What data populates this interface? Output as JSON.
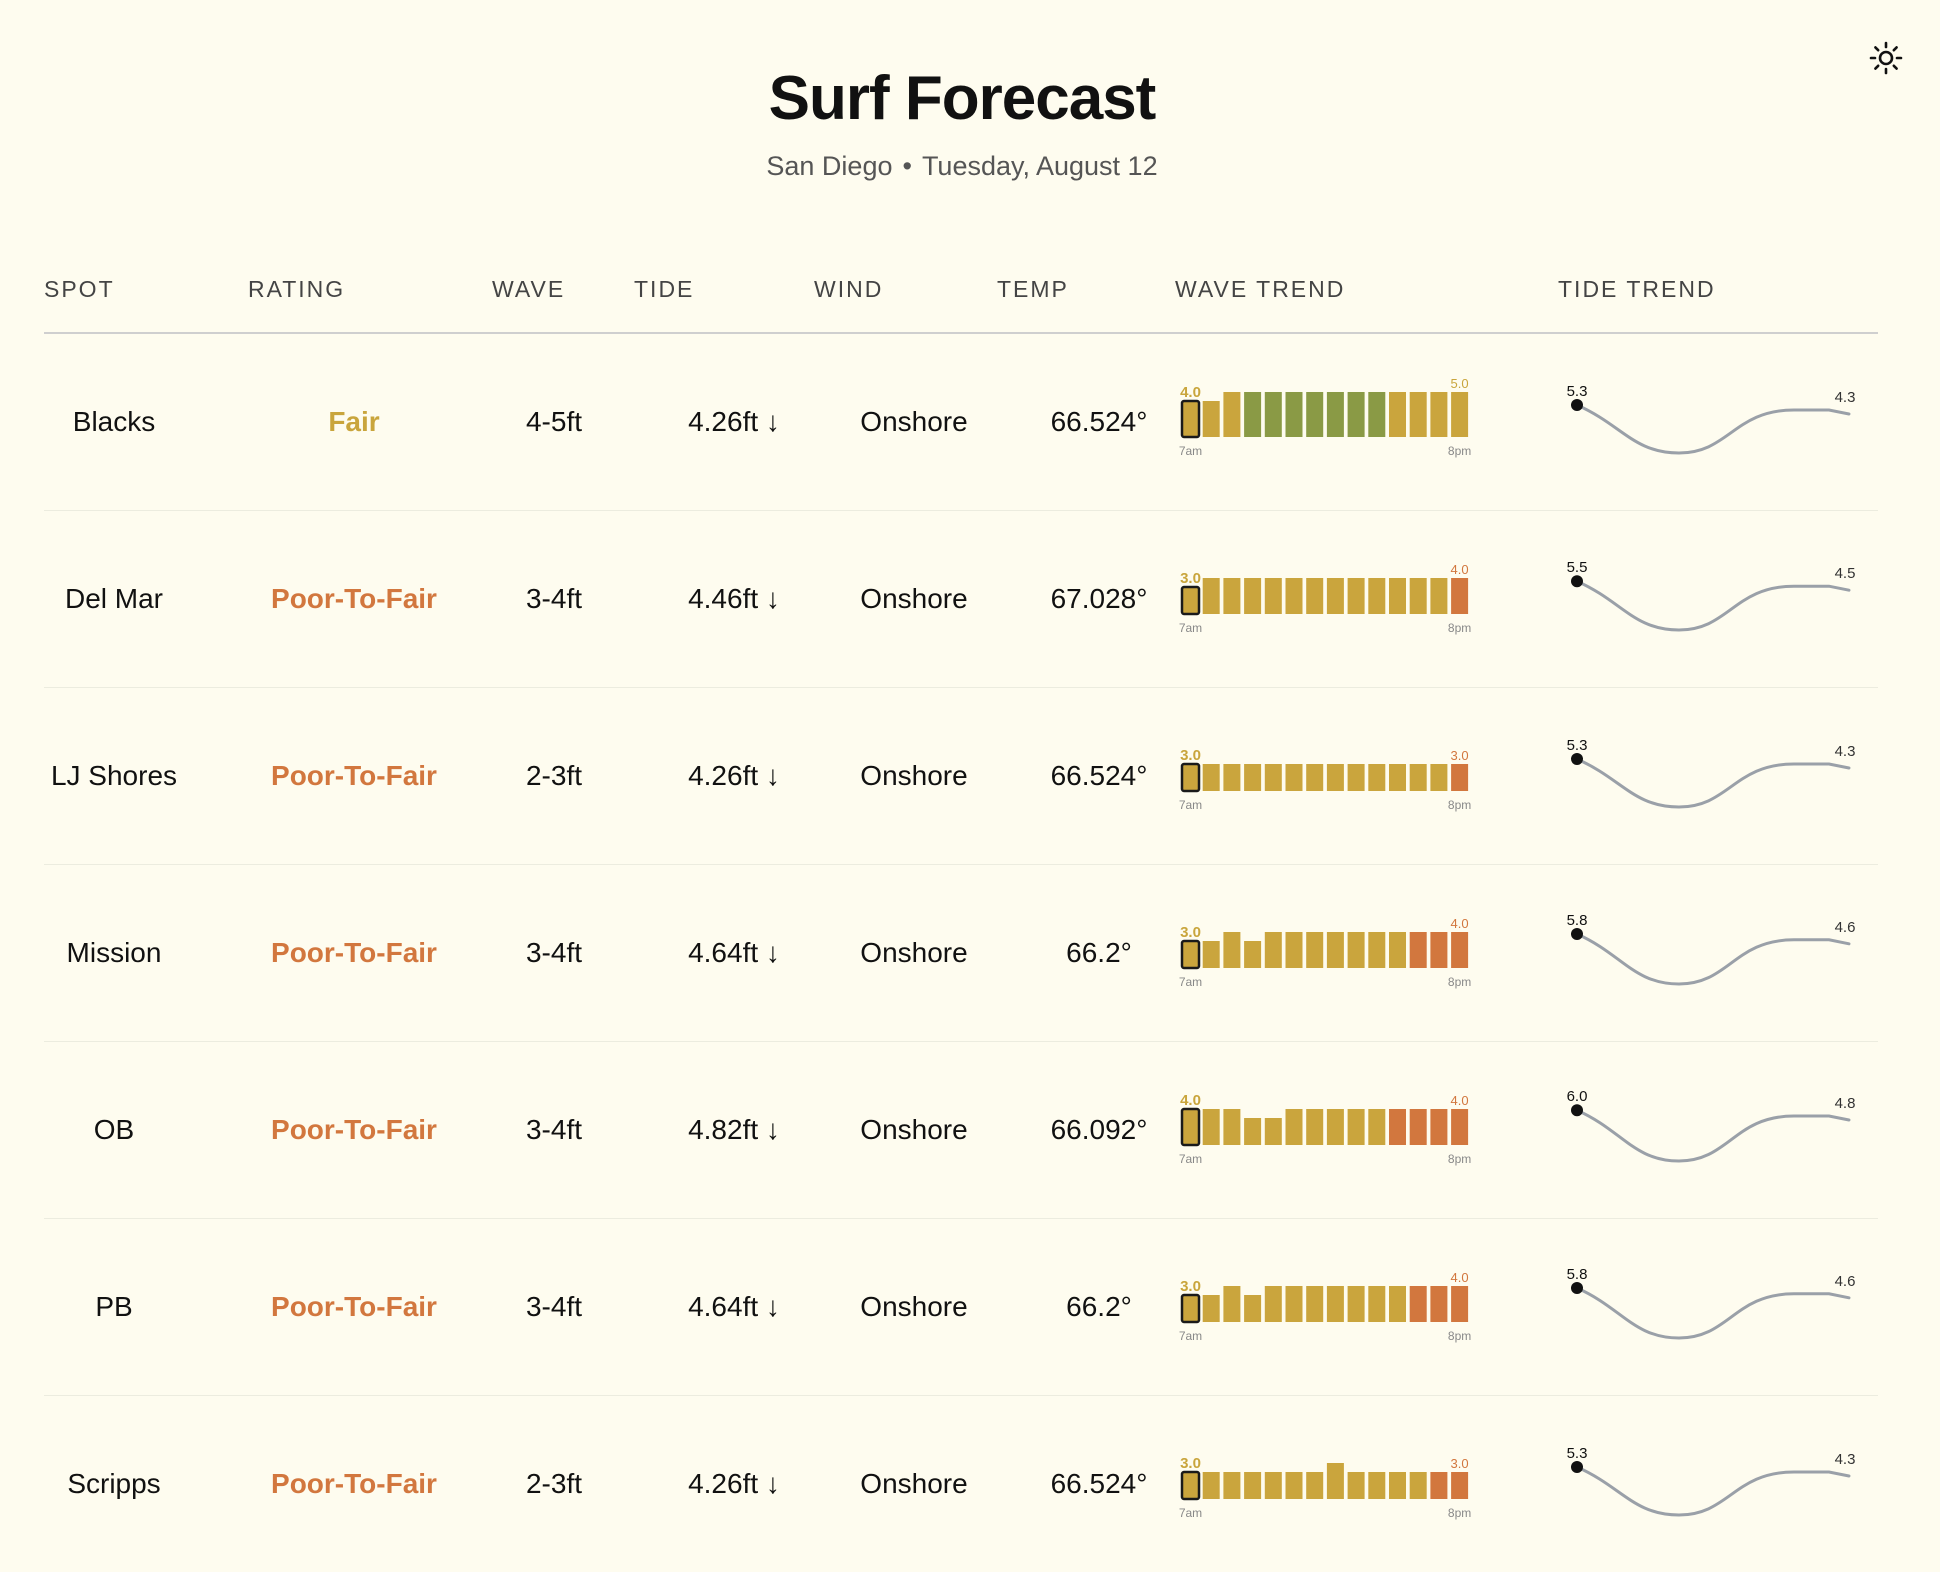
{
  "header": {
    "title": "Surf Forecast",
    "location": "San Diego",
    "separator": "•",
    "date": "Tuesday, August 12"
  },
  "theme_toggle": {
    "icon": "sun-icon"
  },
  "columns": [
    "SPOT",
    "RATING",
    "WAVE",
    "TIDE",
    "WIND",
    "TEMP",
    "WAVE TREND",
    "TIDE TREND"
  ],
  "colors": {
    "fair": "#c9a53c",
    "poor_to_fair": "#d2773e",
    "good": "#8a9a45",
    "bar_yellow": "#caa53d",
    "bar_green": "#8a9a45",
    "bar_orange": "#d2773e",
    "tide_line": "#9aa0a8",
    "divider": "#cfcfcf"
  },
  "wave_trend_axis": {
    "start": "7am",
    "end": "8pm"
  },
  "spots": [
    {
      "name": "Blacks",
      "rating": "Fair",
      "rating_color": "#c9a53c",
      "wave": "4-5ft",
      "tide": "4.26ft ↓",
      "wind": "Onshore",
      "temp": "66.524°",
      "wave_trend": {
        "start_label": "4.0",
        "end_label": "5.0",
        "start_color": "#c9a53c",
        "end_color": "#c9a53c",
        "bars": [
          {
            "v": 4.0,
            "c": "y"
          },
          {
            "v": 4.0,
            "c": "y"
          },
          {
            "v": 5.0,
            "c": "y"
          },
          {
            "v": 5.0,
            "c": "g"
          },
          {
            "v": 5.0,
            "c": "g"
          },
          {
            "v": 5.0,
            "c": "g"
          },
          {
            "v": 5.0,
            "c": "g"
          },
          {
            "v": 5.0,
            "c": "g"
          },
          {
            "v": 5.0,
            "c": "g"
          },
          {
            "v": 5.0,
            "c": "g"
          },
          {
            "v": 5.0,
            "c": "y"
          },
          {
            "v": 5.0,
            "c": "y"
          },
          {
            "v": 5.0,
            "c": "y"
          },
          {
            "v": 5.0,
            "c": "y"
          }
        ]
      },
      "tide_trend": {
        "start_label": "5.3",
        "end_label": "4.3"
      }
    },
    {
      "name": "Del Mar",
      "rating": "Poor-To-Fair",
      "rating_color": "#d2773e",
      "wave": "3-4ft",
      "tide": "4.46ft ↓",
      "wind": "Onshore",
      "temp": "67.028°",
      "wave_trend": {
        "start_label": "3.0",
        "end_label": "4.0",
        "start_color": "#c9a53c",
        "end_color": "#d2773e",
        "bars": [
          {
            "v": 3.0,
            "c": "y"
          },
          {
            "v": 4.0,
            "c": "y"
          },
          {
            "v": 4.0,
            "c": "y"
          },
          {
            "v": 4.0,
            "c": "y"
          },
          {
            "v": 4.0,
            "c": "y"
          },
          {
            "v": 4.0,
            "c": "y"
          },
          {
            "v": 4.0,
            "c": "y"
          },
          {
            "v": 4.0,
            "c": "y"
          },
          {
            "v": 4.0,
            "c": "y"
          },
          {
            "v": 4.0,
            "c": "y"
          },
          {
            "v": 4.0,
            "c": "y"
          },
          {
            "v": 4.0,
            "c": "y"
          },
          {
            "v": 4.0,
            "c": "y"
          },
          {
            "v": 4.0,
            "c": "o"
          }
        ]
      },
      "tide_trend": {
        "start_label": "5.5",
        "end_label": "4.5"
      }
    },
    {
      "name": "LJ Shores",
      "rating": "Poor-To-Fair",
      "rating_color": "#d2773e",
      "wave": "2-3ft",
      "tide": "4.26ft ↓",
      "wind": "Onshore",
      "temp": "66.524°",
      "wave_trend": {
        "start_label": "3.0",
        "end_label": "3.0",
        "start_color": "#c9a53c",
        "end_color": "#d2773e",
        "bars": [
          {
            "v": 3.0,
            "c": "y"
          },
          {
            "v": 3.0,
            "c": "y"
          },
          {
            "v": 3.0,
            "c": "y"
          },
          {
            "v": 3.0,
            "c": "y"
          },
          {
            "v": 3.0,
            "c": "y"
          },
          {
            "v": 3.0,
            "c": "y"
          },
          {
            "v": 3.0,
            "c": "y"
          },
          {
            "v": 3.0,
            "c": "y"
          },
          {
            "v": 3.0,
            "c": "y"
          },
          {
            "v": 3.0,
            "c": "y"
          },
          {
            "v": 3.0,
            "c": "y"
          },
          {
            "v": 3.0,
            "c": "y"
          },
          {
            "v": 3.0,
            "c": "y"
          },
          {
            "v": 3.0,
            "c": "o"
          }
        ]
      },
      "tide_trend": {
        "start_label": "5.3",
        "end_label": "4.3"
      }
    },
    {
      "name": "Mission",
      "rating": "Poor-To-Fair",
      "rating_color": "#d2773e",
      "wave": "3-4ft",
      "tide": "4.64ft ↓",
      "wind": "Onshore",
      "temp": "66.2°",
      "wave_trend": {
        "start_label": "3.0",
        "end_label": "4.0",
        "start_color": "#c9a53c",
        "end_color": "#d2773e",
        "bars": [
          {
            "v": 3.0,
            "c": "y"
          },
          {
            "v": 3.0,
            "c": "y"
          },
          {
            "v": 4.0,
            "c": "y"
          },
          {
            "v": 3.0,
            "c": "y"
          },
          {
            "v": 4.0,
            "c": "y"
          },
          {
            "v": 4.0,
            "c": "y"
          },
          {
            "v": 4.0,
            "c": "y"
          },
          {
            "v": 4.0,
            "c": "y"
          },
          {
            "v": 4.0,
            "c": "y"
          },
          {
            "v": 4.0,
            "c": "y"
          },
          {
            "v": 4.0,
            "c": "y"
          },
          {
            "v": 4.0,
            "c": "o"
          },
          {
            "v": 4.0,
            "c": "o"
          },
          {
            "v": 4.0,
            "c": "o"
          }
        ]
      },
      "tide_trend": {
        "start_label": "5.8",
        "end_label": "4.6"
      }
    },
    {
      "name": "OB",
      "rating": "Poor-To-Fair",
      "rating_color": "#d2773e",
      "wave": "3-4ft",
      "tide": "4.82ft ↓",
      "wind": "Onshore",
      "temp": "66.092°",
      "wave_trend": {
        "start_label": "4.0",
        "end_label": "4.0",
        "start_color": "#c9a53c",
        "end_color": "#d2773e",
        "bars": [
          {
            "v": 4.0,
            "c": "y"
          },
          {
            "v": 4.0,
            "c": "y"
          },
          {
            "v": 4.0,
            "c": "y"
          },
          {
            "v": 3.0,
            "c": "y"
          },
          {
            "v": 3.0,
            "c": "y"
          },
          {
            "v": 4.0,
            "c": "y"
          },
          {
            "v": 4.0,
            "c": "y"
          },
          {
            "v": 4.0,
            "c": "y"
          },
          {
            "v": 4.0,
            "c": "y"
          },
          {
            "v": 4.0,
            "c": "y"
          },
          {
            "v": 4.0,
            "c": "o"
          },
          {
            "v": 4.0,
            "c": "o"
          },
          {
            "v": 4.0,
            "c": "o"
          },
          {
            "v": 4.0,
            "c": "o"
          }
        ]
      },
      "tide_trend": {
        "start_label": "6.0",
        "end_label": "4.8"
      }
    },
    {
      "name": "PB",
      "rating": "Poor-To-Fair",
      "rating_color": "#d2773e",
      "wave": "3-4ft",
      "tide": "4.64ft ↓",
      "wind": "Onshore",
      "temp": "66.2°",
      "wave_trend": {
        "start_label": "3.0",
        "end_label": "4.0",
        "start_color": "#c9a53c",
        "end_color": "#d2773e",
        "bars": [
          {
            "v": 3.0,
            "c": "y"
          },
          {
            "v": 3.0,
            "c": "y"
          },
          {
            "v": 4.0,
            "c": "y"
          },
          {
            "v": 3.0,
            "c": "y"
          },
          {
            "v": 4.0,
            "c": "y"
          },
          {
            "v": 4.0,
            "c": "y"
          },
          {
            "v": 4.0,
            "c": "y"
          },
          {
            "v": 4.0,
            "c": "y"
          },
          {
            "v": 4.0,
            "c": "y"
          },
          {
            "v": 4.0,
            "c": "y"
          },
          {
            "v": 4.0,
            "c": "y"
          },
          {
            "v": 4.0,
            "c": "o"
          },
          {
            "v": 4.0,
            "c": "o"
          },
          {
            "v": 4.0,
            "c": "o"
          }
        ]
      },
      "tide_trend": {
        "start_label": "5.8",
        "end_label": "4.6"
      }
    },
    {
      "name": "Scripps",
      "rating": "Poor-To-Fair",
      "rating_color": "#d2773e",
      "wave": "2-3ft",
      "tide": "4.26ft ↓",
      "wind": "Onshore",
      "temp": "66.524°",
      "wave_trend": {
        "start_label": "3.0",
        "end_label": "3.0",
        "start_color": "#c9a53c",
        "end_color": "#d2773e",
        "bars": [
          {
            "v": 3.0,
            "c": "y"
          },
          {
            "v": 3.0,
            "c": "y"
          },
          {
            "v": 3.0,
            "c": "y"
          },
          {
            "v": 3.0,
            "c": "y"
          },
          {
            "v": 3.0,
            "c": "y"
          },
          {
            "v": 3.0,
            "c": "y"
          },
          {
            "v": 3.0,
            "c": "y"
          },
          {
            "v": 4.0,
            "c": "y"
          },
          {
            "v": 3.0,
            "c": "y"
          },
          {
            "v": 3.0,
            "c": "y"
          },
          {
            "v": 3.0,
            "c": "y"
          },
          {
            "v": 3.0,
            "c": "y"
          },
          {
            "v": 3.0,
            "c": "o"
          },
          {
            "v": 3.0,
            "c": "o"
          }
        ]
      },
      "tide_trend": {
        "start_label": "5.3",
        "end_label": "4.3"
      }
    }
  ]
}
